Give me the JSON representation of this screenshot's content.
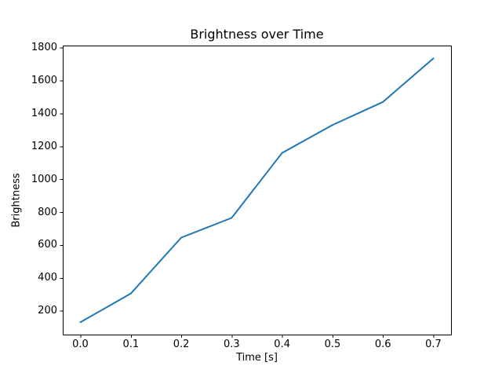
{
  "chart_data": {
    "type": "line",
    "title": "Brightness over Time",
    "xlabel": "Time [s]",
    "ylabel": "Brightness",
    "x": [
      0.0,
      0.1,
      0.2,
      0.3,
      0.4,
      0.5,
      0.6,
      0.7
    ],
    "y": [
      130,
      305,
      645,
      765,
      1160,
      1330,
      1470,
      1735
    ],
    "x_tick_labels": [
      "0.0",
      "0.1",
      "0.2",
      "0.3",
      "0.4",
      "0.5",
      "0.6",
      "0.7"
    ],
    "x_tick_values": [
      0.0,
      0.1,
      0.2,
      0.3,
      0.4,
      0.5,
      0.6,
      0.7
    ],
    "y_tick_labels": [
      "200",
      "400",
      "600",
      "800",
      "1000",
      "1200",
      "1400",
      "1600",
      "1800"
    ],
    "y_tick_values": [
      200,
      400,
      600,
      800,
      1000,
      1200,
      1400,
      1600,
      1800
    ],
    "xlim": [
      -0.035,
      0.735
    ],
    "ylim": [
      55,
      1813
    ],
    "grid": false,
    "legend": "none",
    "line_color": "#1f77b4",
    "axis_color": "#000000",
    "background_color": "#ffffff"
  }
}
